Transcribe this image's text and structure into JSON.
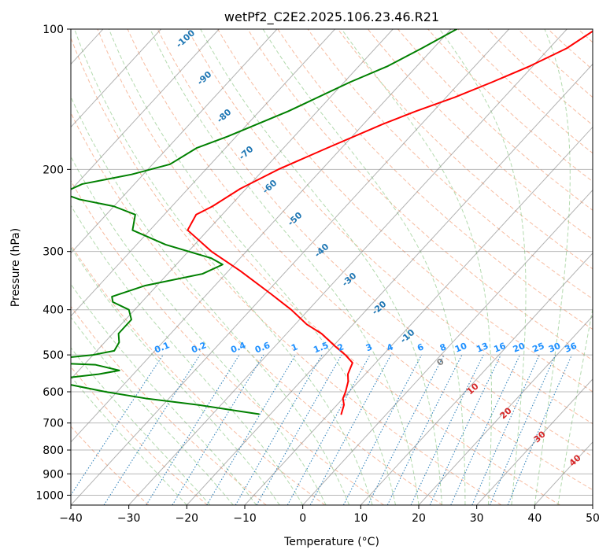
{
  "chart_data": {
    "type": "line",
    "diagram": "skew-t log-p",
    "title": "wetPf2_C2E2.2025.106.23.46.R21",
    "xlabel": "Temperature (°C)",
    "ylabel": "Pressure (hPa)",
    "xlim": [
      -40,
      50
    ],
    "ylim": [
      1050,
      100
    ],
    "y_scale": "log",
    "grid": true,
    "x_ticks": [
      -40,
      -30,
      -20,
      -10,
      0,
      10,
      20,
      30,
      40,
      50
    ],
    "x_tick_labels": [
      "−40",
      "−30",
      "−20",
      "−10",
      "0",
      "10",
      "20",
      "30",
      "40",
      "50"
    ],
    "y_ticks": [
      100,
      200,
      300,
      400,
      500,
      600,
      700,
      800,
      900,
      1000
    ],
    "y_tick_labels": [
      "100",
      "200",
      "300",
      "400",
      "500",
      "600",
      "700",
      "800",
      "900",
      "1000"
    ],
    "series": [
      {
        "role": "temperature",
        "color": "#ff0000",
        "points": [
          [
            100,
            -25
          ],
          [
            110,
            -27
          ],
          [
            120,
            -30.5
          ],
          [
            130,
            -34.5
          ],
          [
            140,
            -38.5
          ],
          [
            150,
            -43
          ],
          [
            160,
            -46.7
          ],
          [
            180,
            -52.5
          ],
          [
            200,
            -57.5
          ],
          [
            220,
            -61
          ],
          [
            240,
            -63
          ],
          [
            250,
            -64.5
          ],
          [
            270,
            -63.5
          ],
          [
            300,
            -56
          ],
          [
            330,
            -48
          ],
          [
            370,
            -39
          ],
          [
            400,
            -33
          ],
          [
            430,
            -28
          ],
          [
            450,
            -24
          ],
          [
            480,
            -19.5
          ],
          [
            500,
            -16.5
          ],
          [
            520,
            -14
          ],
          [
            550,
            -13
          ],
          [
            570,
            -11.8
          ],
          [
            600,
            -10.6
          ],
          [
            620,
            -10
          ],
          [
            640,
            -8.8
          ],
          [
            670,
            -7.8
          ]
        ]
      },
      {
        "role": "dewpoint",
        "color": "#008000",
        "points": [
          [
            100,
            -49
          ],
          [
            110,
            -52
          ],
          [
            120,
            -55
          ],
          [
            130,
            -59
          ],
          [
            150,
            -65
          ],
          [
            170,
            -71.5
          ],
          [
            180,
            -75
          ],
          [
            195,
            -77
          ],
          [
            205,
            -82
          ],
          [
            215,
            -89
          ],
          [
            225,
            -91
          ],
          [
            232,
            -87
          ],
          [
            240,
            -80
          ],
          [
            250,
            -75
          ],
          [
            270,
            -73
          ],
          [
            290,
            -65
          ],
          [
            310,
            -55
          ],
          [
            320,
            -52
          ],
          [
            335,
            -54
          ],
          [
            355,
            -62
          ],
          [
            375,
            -66
          ],
          [
            385,
            -65
          ],
          [
            400,
            -61
          ],
          [
            420,
            -59
          ],
          [
            450,
            -59
          ],
          [
            470,
            -57.5
          ],
          [
            490,
            -57
          ],
          [
            500,
            -60
          ],
          [
            510,
            -66
          ],
          [
            518,
            -69.5
          ],
          [
            525,
            -58
          ],
          [
            540,
            -53
          ],
          [
            550,
            -56
          ],
          [
            562,
            -62
          ],
          [
            580,
            -59
          ],
          [
            600,
            -52
          ],
          [
            620,
            -44
          ],
          [
            640,
            -34
          ],
          [
            660,
            -26
          ],
          [
            670,
            -22
          ]
        ]
      }
    ],
    "dry_adiabat_labels": [
      "-100",
      "-90",
      "-80",
      "-70",
      "-60",
      "-50",
      "-40",
      "-30",
      "-20",
      "-10",
      "0",
      "10",
      "20",
      "30",
      "40"
    ],
    "mixing_ratio_labels": [
      "0.1",
      "0.2",
      "0.4",
      "0.6",
      "1",
      "1.5",
      "2",
      "3",
      "4",
      "6",
      "8",
      "10",
      "13",
      "16",
      "20",
      "25",
      "30",
      "36"
    ],
    "colors": {
      "temperature": "#ff0000",
      "dewpoint": "#008000",
      "isotherm": "#7f7f7f",
      "dry_adiabat": "#f4a582",
      "moist_adiabat": "#a6d3a0",
      "mixing_ratio": "#1f77b4",
      "mixing_label": "#1e90ff",
      "dry_label_cold": "#1f77b4",
      "dry_label_warm": "#d62728",
      "dry_label_zero": "#7f7f7f",
      "tan": "#d2b48c"
    }
  }
}
